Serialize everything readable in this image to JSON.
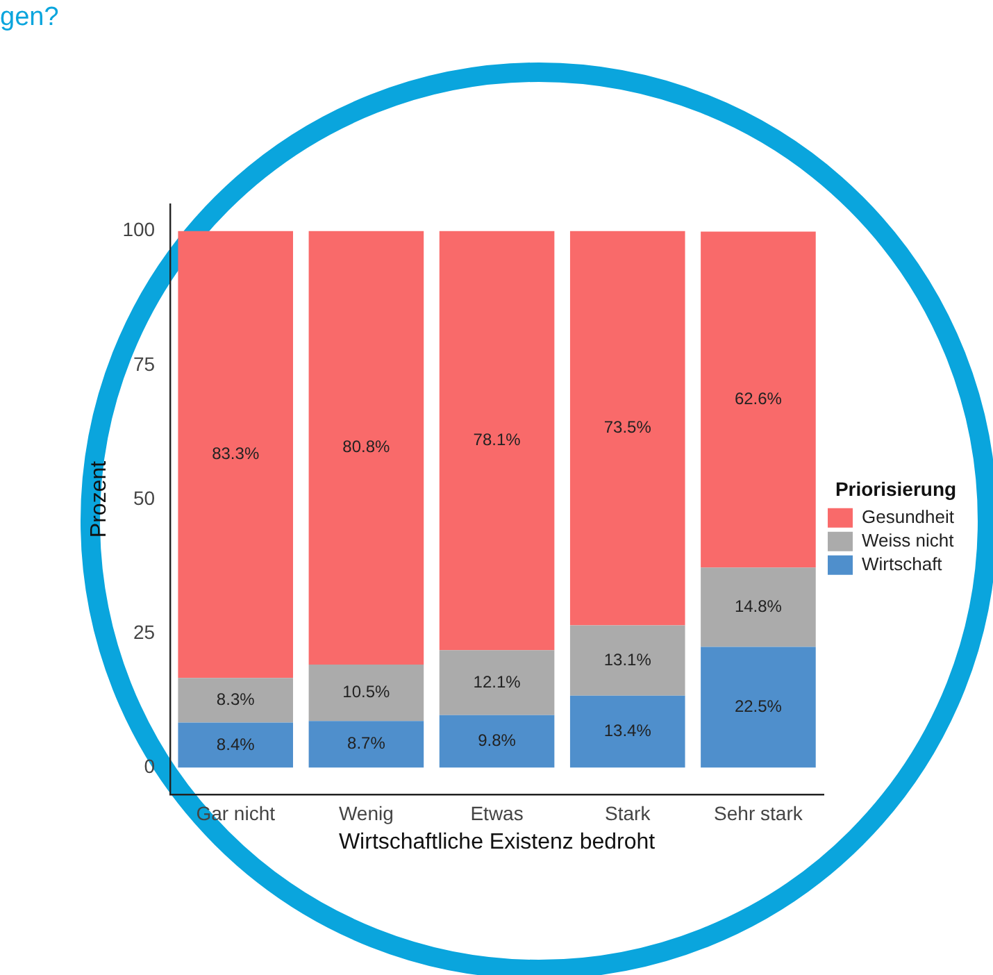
{
  "chart_data": {
    "type": "bar",
    "title": "gen?",
    "xlabel": "Wirtschaftliche Existenz bedroht",
    "ylabel": "Prozent",
    "legend_title": "Priorisierung",
    "categories": [
      "Gar nicht",
      "Wenig",
      "Etwas",
      "Stark",
      "Sehr stark"
    ],
    "stacked": true,
    "ylim": [
      -5,
      105
    ],
    "yticks": [
      0,
      25,
      50,
      75,
      100
    ],
    "grid": false,
    "legend": "right",
    "series": [
      {
        "name": "Wirtschaft",
        "color": "#4f8fcc",
        "values": [
          8.4,
          8.7,
          9.8,
          13.4,
          22.5
        ],
        "value_labels": [
          "8.4%",
          "8.7%",
          "9.8%",
          "13.4%",
          "22.5%"
        ]
      },
      {
        "name": "Weiss nicht",
        "color": "#ababab",
        "values": [
          8.3,
          10.5,
          12.1,
          13.1,
          14.8
        ],
        "value_labels": [
          "8.3%",
          "10.5%",
          "12.1%",
          "13.1%",
          "14.8%"
        ]
      },
      {
        "name": "Gesundheit",
        "color": "#f96a6a",
        "values": [
          83.3,
          80.8,
          78.1,
          73.5,
          62.6
        ],
        "value_labels": [
          "83.3%",
          "80.8%",
          "78.1%",
          "73.5%",
          "62.6%"
        ]
      }
    ]
  }
}
